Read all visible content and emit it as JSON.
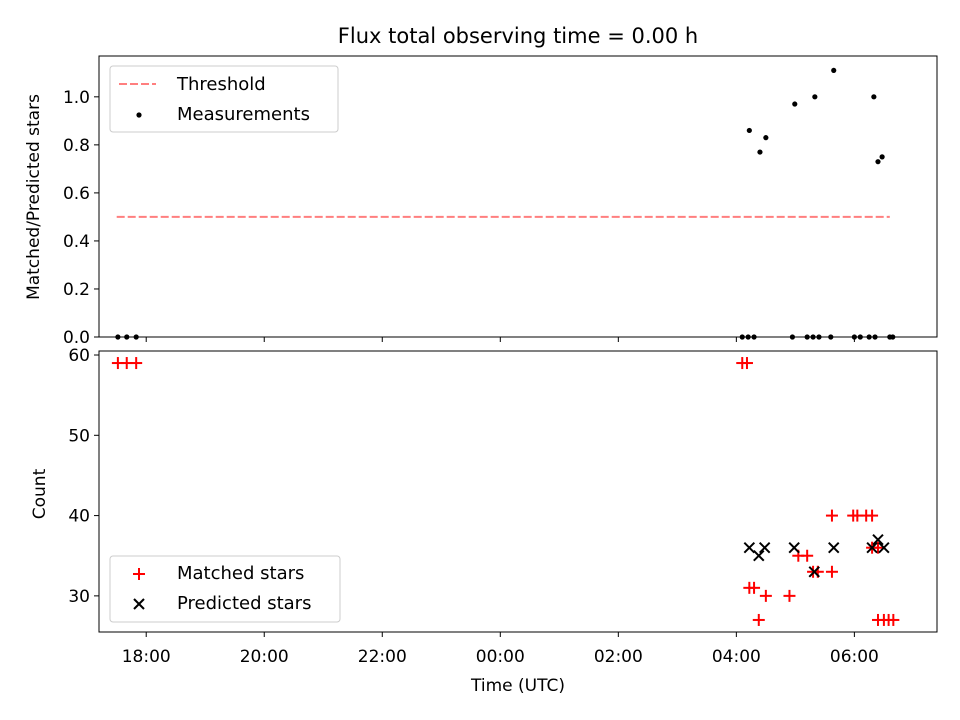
{
  "chart_data": [
    {
      "type": "scatter",
      "title": "Flux total observing time = 0.00 h",
      "xlabel": "",
      "ylabel": "Matched/Predicted stars",
      "xlim": [
        -6.8,
        7.4
      ],
      "ylim": [
        0.0,
        1.17
      ],
      "xticks": [
        -6,
        -4,
        -2,
        0,
        2,
        4,
        6
      ],
      "yticks": [
        0.0,
        0.2,
        0.4,
        0.6,
        0.8,
        1.0
      ],
      "ytick_labels": [
        "0.0",
        "0.2",
        "0.4",
        "0.6",
        "0.8",
        "1.0"
      ],
      "legend": {
        "position": "top-left",
        "entries": [
          "Threshold",
          "Measurements"
        ]
      },
      "threshold": {
        "name": "Threshold",
        "y": 0.5,
        "x": [
          -6.5,
          6.6
        ],
        "color": "#ff7f7f",
        "style": "dashed"
      },
      "series": [
        {
          "name": "Measurements",
          "marker": "dot",
          "color": "#000000",
          "points": [
            [
              -6.48,
              0
            ],
            [
              -6.33,
              0
            ],
            [
              -6.17,
              0
            ],
            [
              4.1,
              0
            ],
            [
              4.2,
              0
            ],
            [
              4.3,
              0
            ],
            [
              4.22,
              0.86
            ],
            [
              4.4,
              0.77
            ],
            [
              4.5,
              0.83
            ],
            [
              4.95,
              0
            ],
            [
              4.99,
              0.97
            ],
            [
              5.2,
              0
            ],
            [
              5.3,
              0
            ],
            [
              5.4,
              0
            ],
            [
              5.6,
              0
            ],
            [
              5.33,
              1.0
            ],
            [
              5.65,
              1.11
            ],
            [
              6.0,
              0
            ],
            [
              6.1,
              0
            ],
            [
              6.25,
              0
            ],
            [
              6.35,
              0
            ],
            [
              6.33,
              1.0
            ],
            [
              6.4,
              0.73
            ],
            [
              6.47,
              0.75
            ],
            [
              6.6,
              0
            ],
            [
              6.65,
              0
            ]
          ]
        }
      ]
    },
    {
      "type": "scatter",
      "title": "",
      "xlabel": "Time (UTC)",
      "ylabel": "Count",
      "xlim": [
        -6.8,
        7.4
      ],
      "ylim": [
        25.5,
        60.5
      ],
      "xticks": [
        -6,
        -4,
        -2,
        0,
        2,
        4,
        6
      ],
      "xtick_labels": [
        "18:00",
        "20:00",
        "22:00",
        "00:00",
        "02:00",
        "04:00",
        "06:00"
      ],
      "yticks": [
        30,
        40,
        50,
        60
      ],
      "ytick_labels": [
        "30",
        "40",
        "50",
        "60"
      ],
      "legend": {
        "position": "bottom-left",
        "entries": [
          "Matched stars",
          "Predicted stars"
        ]
      },
      "series": [
        {
          "name": "Matched stars",
          "marker": "plus",
          "color": "#ff0000",
          "points": [
            [
              -6.48,
              59
            ],
            [
              -6.33,
              59
            ],
            [
              -6.17,
              59
            ],
            [
              4.1,
              59
            ],
            [
              4.18,
              59
            ],
            [
              4.22,
              31
            ],
            [
              4.3,
              31
            ],
            [
              4.38,
              27
            ],
            [
              4.5,
              30
            ],
            [
              4.9,
              30
            ],
            [
              5.05,
              35
            ],
            [
              5.2,
              35
            ],
            [
              5.3,
              33
            ],
            [
              5.38,
              33
            ],
            [
              5.62,
              33
            ],
            [
              5.62,
              40
            ],
            [
              5.98,
              40
            ],
            [
              6.05,
              40
            ],
            [
              6.2,
              40
            ],
            [
              6.3,
              40
            ],
            [
              6.3,
              36
            ],
            [
              6.4,
              36
            ],
            [
              6.4,
              27
            ],
            [
              6.5,
              27
            ],
            [
              6.58,
              27
            ],
            [
              6.66,
              27
            ]
          ]
        },
        {
          "name": "Predicted stars",
          "marker": "x",
          "color": "#000000",
          "points": [
            [
              4.22,
              36
            ],
            [
              4.38,
              35
            ],
            [
              4.48,
              36
            ],
            [
              4.98,
              36
            ],
            [
              5.32,
              33
            ],
            [
              5.65,
              36
            ],
            [
              6.3,
              36
            ],
            [
              6.4,
              37
            ],
            [
              6.5,
              36
            ]
          ]
        }
      ]
    }
  ]
}
